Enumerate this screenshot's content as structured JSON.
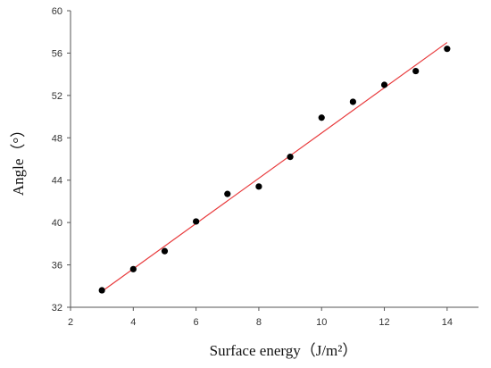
{
  "chart_data": {
    "type": "scatter",
    "title": "",
    "xlabel": "Surface energy（J/m²）",
    "ylabel": "Angle（°）",
    "xlim": [
      2,
      15
    ],
    "ylim": [
      32,
      60
    ],
    "xticks": [
      2,
      4,
      6,
      8,
      10,
      12,
      14
    ],
    "yticks": [
      32,
      36,
      40,
      44,
      48,
      52,
      56,
      60
    ],
    "grid": false,
    "colors": {
      "points": "#000000",
      "fit_line": "#e8393b",
      "axis": "#555555"
    },
    "series": [
      {
        "kind": "points",
        "x": [
          3,
          4,
          5,
          6,
          7,
          8,
          9,
          10,
          11,
          12,
          13,
          14
        ],
        "y": [
          33.6,
          35.6,
          37.3,
          40.1,
          42.7,
          43.4,
          46.2,
          49.9,
          51.4,
          53.0,
          54.3,
          56.4
        ]
      },
      {
        "kind": "fit-line",
        "x": [
          3,
          14
        ],
        "y": [
          33.5,
          57.0
        ]
      }
    ]
  }
}
